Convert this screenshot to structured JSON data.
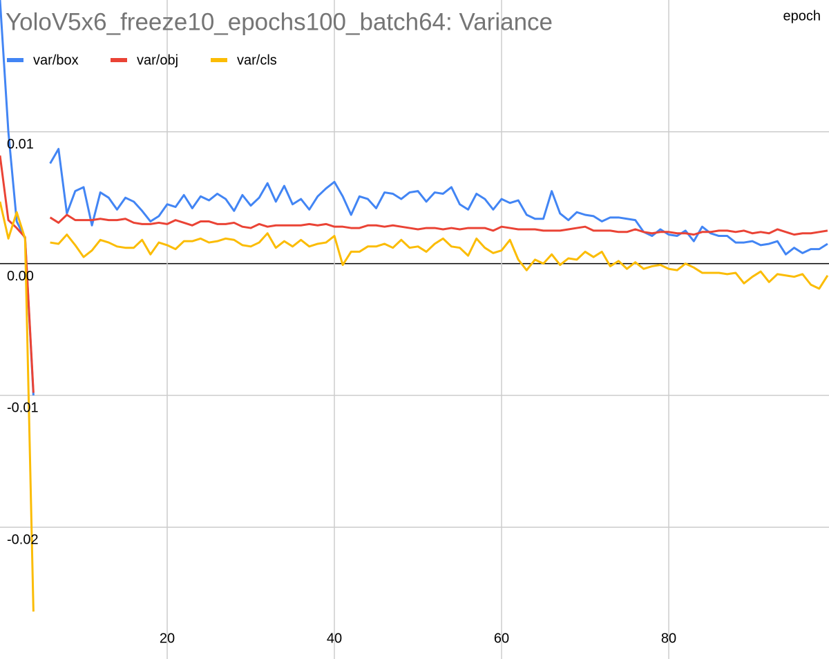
{
  "chart_data": {
    "type": "line",
    "title": "YoloV5x6_freeze10_epochs100_batch64: Variance",
    "x_label": "epoch",
    "x": [
      0,
      1,
      2,
      3,
      4,
      5,
      6,
      7,
      8,
      9,
      10,
      11,
      12,
      13,
      14,
      15,
      16,
      17,
      18,
      19,
      20,
      21,
      22,
      23,
      24,
      25,
      26,
      27,
      28,
      29,
      30,
      31,
      32,
      33,
      34,
      35,
      36,
      37,
      38,
      39,
      40,
      41,
      42,
      43,
      44,
      45,
      46,
      47,
      48,
      49,
      50,
      51,
      52,
      53,
      54,
      55,
      56,
      57,
      58,
      59,
      60,
      61,
      62,
      63,
      64,
      65,
      66,
      67,
      68,
      69,
      70,
      71,
      72,
      73,
      74,
      75,
      76,
      77,
      78,
      79,
      80,
      81,
      82,
      83,
      84,
      85,
      86,
      87,
      88,
      89,
      90,
      91,
      92,
      93,
      94,
      95,
      96,
      97,
      98,
      99
    ],
    "series": [
      {
        "name": "var/box",
        "color": "#4285f4",
        "values": [
          0.02,
          0.01,
          0.0032,
          0.0019,
          -0.01,
          null,
          0.0076,
          0.0087,
          0.0038,
          0.0055,
          0.0058,
          0.0029,
          0.0054,
          0.005,
          0.0041,
          0.005,
          0.0047,
          0.004,
          0.0032,
          0.0036,
          0.0045,
          0.0043,
          0.0052,
          0.0042,
          0.0051,
          0.0048,
          0.0053,
          0.0049,
          0.004,
          0.0052,
          0.0044,
          0.005,
          0.0061,
          0.0047,
          0.0059,
          0.0045,
          0.0049,
          0.0041,
          0.0051,
          0.0057,
          0.0062,
          0.0051,
          0.0037,
          0.0051,
          0.0049,
          0.0042,
          0.0054,
          0.0053,
          0.0049,
          0.0054,
          0.0055,
          0.0047,
          0.0054,
          0.0053,
          0.0058,
          0.0045,
          0.0041,
          0.0053,
          0.0049,
          0.0041,
          0.0049,
          0.0046,
          0.0048,
          0.0037,
          0.0034,
          0.0034,
          0.0055,
          0.0038,
          0.0033,
          0.0039,
          0.0037,
          0.0036,
          0.0032,
          0.0035,
          0.0035,
          0.0034,
          0.0033,
          0.0024,
          0.0021,
          0.0026,
          0.0022,
          0.0021,
          0.0025,
          0.0017,
          0.0028,
          0.0023,
          0.0021,
          0.0021,
          0.0016,
          0.0016,
          0.0017,
          0.0014,
          0.0015,
          0.0017,
          0.0007,
          0.0012,
          0.0008,
          0.0011,
          0.0011,
          0.0015
        ]
      },
      {
        "name": "var/obj",
        "color": "#ea4335",
        "values": [
          0.0082,
          0.0033,
          0.0027,
          0.002,
          -0.0098,
          null,
          0.0035,
          0.0031,
          0.0037,
          0.0033,
          0.0033,
          0.0033,
          0.0034,
          0.0033,
          0.0033,
          0.0034,
          0.0031,
          0.003,
          0.003,
          0.0031,
          0.003,
          0.0033,
          0.0031,
          0.0029,
          0.0032,
          0.0032,
          0.003,
          0.003,
          0.0031,
          0.0028,
          0.0027,
          0.003,
          0.0028,
          0.0029,
          0.0029,
          0.0029,
          0.0029,
          0.003,
          0.0029,
          0.003,
          0.0028,
          0.0028,
          0.0027,
          0.0027,
          0.0029,
          0.0029,
          0.0028,
          0.0029,
          0.0028,
          0.0027,
          0.0026,
          0.0027,
          0.0027,
          0.0026,
          0.0027,
          0.0026,
          0.0027,
          0.0027,
          0.0027,
          0.0025,
          0.0028,
          0.0027,
          0.0026,
          0.0026,
          0.0026,
          0.0025,
          0.0025,
          0.0025,
          0.0026,
          0.0027,
          0.0028,
          0.0025,
          0.0025,
          0.0025,
          0.0024,
          0.0024,
          0.0026,
          0.0024,
          0.0023,
          0.0024,
          0.0024,
          0.0023,
          0.0023,
          0.0022,
          0.0024,
          0.0024,
          0.0025,
          0.0025,
          0.0024,
          0.0025,
          0.0023,
          0.0024,
          0.0023,
          0.0026,
          0.0024,
          0.0022,
          0.0023,
          0.0023,
          0.0024,
          0.0025
        ]
      },
      {
        "name": "var/cls",
        "color": "#fbbc04",
        "values": [
          0.0047,
          0.0019,
          0.0039,
          0.0019,
          -0.0264,
          null,
          0.0016,
          0.0015,
          0.0022,
          0.0014,
          0.0005,
          0.001,
          0.0018,
          0.0016,
          0.0013,
          0.0012,
          0.0012,
          0.0018,
          0.0007,
          0.0016,
          0.0014,
          0.0011,
          0.0017,
          0.0017,
          0.0019,
          0.0016,
          0.0017,
          0.0019,
          0.0018,
          0.0014,
          0.0013,
          0.0016,
          0.0023,
          0.0012,
          0.0017,
          0.0013,
          0.0018,
          0.0013,
          0.0015,
          0.0016,
          0.0021,
          -0.0001,
          0.0009,
          0.0009,
          0.0013,
          0.0013,
          0.0015,
          0.0012,
          0.0018,
          0.0012,
          0.0013,
          0.0009,
          0.0015,
          0.0019,
          0.0013,
          0.0012,
          0.0006,
          0.0019,
          0.0012,
          0.0008,
          0.001,
          0.0018,
          0.0003,
          -0.0005,
          0.0003,
          0,
          0.0007,
          -0.0001,
          0.0004,
          0.0003,
          0.0009,
          0.0005,
          0.0009,
          -0.0002,
          0.0002,
          -0.0004,
          0.0001,
          -0.0004,
          -0.0002,
          -0.0001,
          -0.0004,
          -0.0005,
          0,
          -0.0003,
          -0.0007,
          -0.0007,
          -0.0007,
          -0.0008,
          -0.0007,
          -0.0015,
          -0.001,
          -0.0006,
          -0.0014,
          -0.0008,
          -0.0009,
          -0.001,
          -0.0008,
          -0.0016,
          -0.0019,
          -0.0009
        ]
      }
    ],
    "xlim": [
      0,
      99.17
    ],
    "xticks": [
      20,
      40,
      60,
      80
    ],
    "ylim": [
      -0.03,
      0.02
    ],
    "yticks": [
      -0.02,
      -0.01,
      {
        "value": 0,
        "label": "0.00"
      },
      0.01
    ],
    "grid": true,
    "legend": "top-left"
  }
}
